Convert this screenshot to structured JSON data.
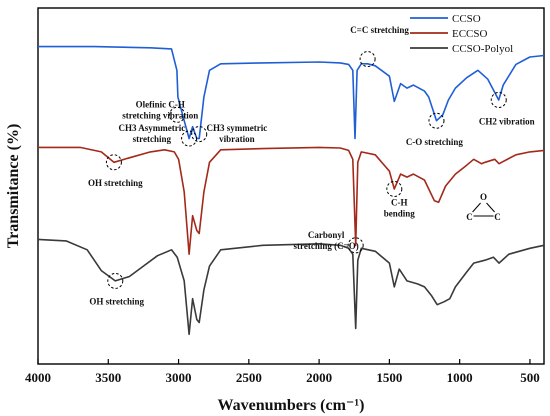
{
  "chart_data": {
    "type": "line",
    "title": "",
    "xlabel": "Wavenumbers (cm⁻¹)",
    "ylabel": "Transmitance (%)",
    "xlim": [
      4000,
      400
    ],
    "x_reversed": true,
    "x_ticks": [
      4000,
      3500,
      3000,
      2500,
      2000,
      1500,
      1000,
      500
    ],
    "y_ticks_shown": false,
    "grid": false,
    "legend_position": "top-right",
    "series": [
      {
        "name": "CCSO",
        "color": "#1f5fd6",
        "points": [
          [
            4000,
            0.87
          ],
          [
            3600,
            0.87
          ],
          [
            3200,
            0.866
          ],
          [
            3050,
            0.862
          ],
          [
            3012,
            0.79
          ],
          [
            3005,
            0.7
          ],
          [
            2960,
            0.62
          ],
          [
            2925,
            0.56
          ],
          [
            2900,
            0.6
          ],
          [
            2870,
            0.56
          ],
          [
            2853,
            0.56
          ],
          [
            2820,
            0.7
          ],
          [
            2780,
            0.79
          ],
          [
            2700,
            0.812
          ],
          [
            2400,
            0.815
          ],
          [
            2000,
            0.818
          ],
          [
            1850,
            0.815
          ],
          [
            1790,
            0.81
          ],
          [
            1760,
            0.79
          ],
          [
            1745,
            0.56
          ],
          [
            1730,
            0.79
          ],
          [
            1700,
            0.812
          ],
          [
            1655,
            0.812
          ],
          [
            1600,
            0.805
          ],
          [
            1500,
            0.77
          ],
          [
            1465,
            0.685
          ],
          [
            1420,
            0.745
          ],
          [
            1375,
            0.73
          ],
          [
            1330,
            0.74
          ],
          [
            1250,
            0.72
          ],
          [
            1220,
            0.7
          ],
          [
            1165,
            0.62
          ],
          [
            1120,
            0.64
          ],
          [
            1080,
            0.69
          ],
          [
            1030,
            0.73
          ],
          [
            950,
            0.765
          ],
          [
            870,
            0.79
          ],
          [
            800,
            0.76
          ],
          [
            722,
            0.69
          ],
          [
            690,
            0.74
          ],
          [
            600,
            0.81
          ],
          [
            500,
            0.835
          ],
          [
            400,
            0.84
          ]
        ]
      },
      {
        "name": "ECCSO",
        "color": "#a32a1a",
        "points": [
          [
            4000,
            0.53
          ],
          [
            3700,
            0.53
          ],
          [
            3550,
            0.515
          ],
          [
            3460,
            0.48
          ],
          [
            3350,
            0.495
          ],
          [
            3200,
            0.515
          ],
          [
            3100,
            0.522
          ],
          [
            3030,
            0.515
          ],
          [
            3000,
            0.49
          ],
          [
            2960,
            0.38
          ],
          [
            2925,
            0.17
          ],
          [
            2900,
            0.3
          ],
          [
            2870,
            0.25
          ],
          [
            2853,
            0.24
          ],
          [
            2820,
            0.38
          ],
          [
            2780,
            0.48
          ],
          [
            2700,
            0.522
          ],
          [
            2400,
            0.526
          ],
          [
            2000,
            0.53
          ],
          [
            1850,
            0.528
          ],
          [
            1790,
            0.52
          ],
          [
            1760,
            0.49
          ],
          [
            1740,
            0.2
          ],
          [
            1725,
            0.48
          ],
          [
            1700,
            0.515
          ],
          [
            1600,
            0.505
          ],
          [
            1500,
            0.45
          ],
          [
            1465,
            0.39
          ],
          [
            1420,
            0.44
          ],
          [
            1375,
            0.43
          ],
          [
            1330,
            0.44
          ],
          [
            1250,
            0.42
          ],
          [
            1180,
            0.35
          ],
          [
            1150,
            0.345
          ],
          [
            1100,
            0.4
          ],
          [
            1030,
            0.44
          ],
          [
            950,
            0.47
          ],
          [
            900,
            0.49
          ],
          [
            845,
            0.475
          ],
          [
            820,
            0.48
          ],
          [
            750,
            0.49
          ],
          [
            720,
            0.475
          ],
          [
            600,
            0.505
          ],
          [
            500,
            0.515
          ],
          [
            400,
            0.52
          ]
        ]
      },
      {
        "name": "CCSO-Polyol",
        "color": "#3a3a3a",
        "points": [
          [
            4000,
            0.22
          ],
          [
            3800,
            0.215
          ],
          [
            3650,
            0.185
          ],
          [
            3550,
            0.115
          ],
          [
            3450,
            0.08
          ],
          [
            3350,
            0.095
          ],
          [
            3250,
            0.13
          ],
          [
            3150,
            0.165
          ],
          [
            3050,
            0.185
          ],
          [
            3010,
            0.16
          ],
          [
            2960,
            0.08
          ],
          [
            2925,
            -0.1
          ],
          [
            2900,
            0.02
          ],
          [
            2870,
            -0.05
          ],
          [
            2853,
            -0.06
          ],
          [
            2820,
            0.05
          ],
          [
            2780,
            0.13
          ],
          [
            2700,
            0.185
          ],
          [
            2400,
            0.2
          ],
          [
            2000,
            0.205
          ],
          [
            1850,
            0.2
          ],
          [
            1790,
            0.19
          ],
          [
            1760,
            0.17
          ],
          [
            1740,
            -0.08
          ],
          [
            1725,
            0.15
          ],
          [
            1700,
            0.19
          ],
          [
            1600,
            0.18
          ],
          [
            1500,
            0.14
          ],
          [
            1465,
            0.06
          ],
          [
            1430,
            0.12
          ],
          [
            1375,
            0.08
          ],
          [
            1300,
            0.07
          ],
          [
            1250,
            0.06
          ],
          [
            1200,
            0.03
          ],
          [
            1160,
            0.0
          ],
          [
            1110,
            0.01
          ],
          [
            1070,
            0.02
          ],
          [
            1030,
            0.06
          ],
          [
            950,
            0.11
          ],
          [
            900,
            0.14
          ],
          [
            820,
            0.15
          ],
          [
            760,
            0.16
          ],
          [
            720,
            0.14
          ],
          [
            650,
            0.17
          ],
          [
            500,
            0.19
          ],
          [
            400,
            0.2
          ]
        ]
      }
    ],
    "annotations": [
      {
        "lines": [
          "Olefinic C-H",
          "stretching vibration"
        ],
        "x": 3010,
        "y": 0.64,
        "label_x": 3130,
        "label_y": 0.665
      },
      {
        "lines": [
          "CH3 Asymmetric",
          "stretching"
        ],
        "x": 2925,
        "y": 0.56,
        "label_x": 3190,
        "label_y": 0.585
      },
      {
        "lines": [
          "CH3 symmetric",
          "vibration"
        ],
        "x": 2853,
        "y": 0.575,
        "label_x": 2585,
        "label_y": 0.585
      },
      {
        "lines": [
          "C=C stretching"
        ],
        "x": 1655,
        "y": 0.828,
        "label_x": 1570,
        "label_y": 0.915
      },
      {
        "lines": [
          "CH2 vibration"
        ],
        "x": 722,
        "y": 0.69,
        "label_x": 665,
        "label_y": 0.607
      },
      {
        "lines": [
          "C-O  stretching"
        ],
        "x": 1165,
        "y": 0.62,
        "label_x": 1180,
        "label_y": 0.538
      },
      {
        "lines": [
          "OH stretching"
        ],
        "x": 3460,
        "y": 0.48,
        "label_x": 3450,
        "label_y": 0.4
      },
      {
        "lines": [
          "C-H",
          "bending"
        ],
        "x": 1465,
        "y": 0.39,
        "label_x": 1430,
        "label_y": 0.335
      },
      {
        "lines": [
          "Carbonyl",
          "stretching (C=O)"
        ],
        "x": 1740,
        "y": 0.2,
        "label_x": 1950,
        "label_y": 0.225
      },
      {
        "lines": [
          "OH stretching"
        ],
        "x": 3450,
        "y": 0.08,
        "label_x": 3440,
        "label_y": 0.0
      }
    ],
    "epoxide_symbol": {
      "atoms": [
        "O",
        "C",
        "C"
      ],
      "x": 830,
      "y": 0.4
    }
  }
}
